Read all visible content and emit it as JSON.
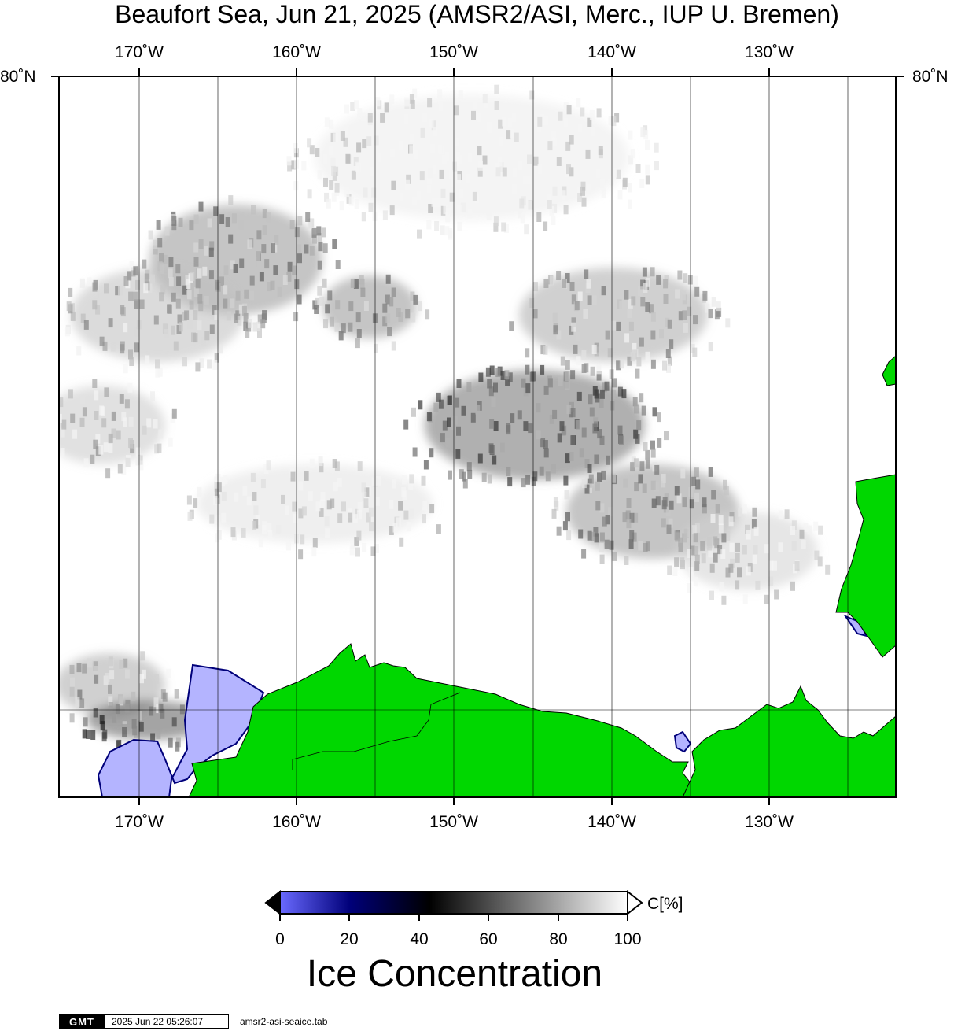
{
  "title": "Beaufort Sea, Jun 21, 2025 (AMSR2/ASI, Merc., IUP U. Bremen)",
  "map": {
    "lon_ticks": [
      "170˚W",
      "160˚W",
      "150˚W",
      "140˚W",
      "130˚W"
    ],
    "lat_label": "80˚N",
    "colors": {
      "land": "#00d700",
      "water": "#ffffff",
      "low_ice": "#b4b4ff",
      "grid": "#000000"
    }
  },
  "colorbar": {
    "unit": "C[%]",
    "ticks": [
      "0",
      "20",
      "40",
      "60",
      "80",
      "100"
    ],
    "title": "Ice Concentration",
    "stops": [
      "#6a6aff",
      "#00007a",
      "#000000",
      "#ffffff"
    ]
  },
  "stamp": {
    "logo": "GMT",
    "date": "2025 Jun 22 05:26:07",
    "file": "amsr2-asi-seaice.tab"
  }
}
